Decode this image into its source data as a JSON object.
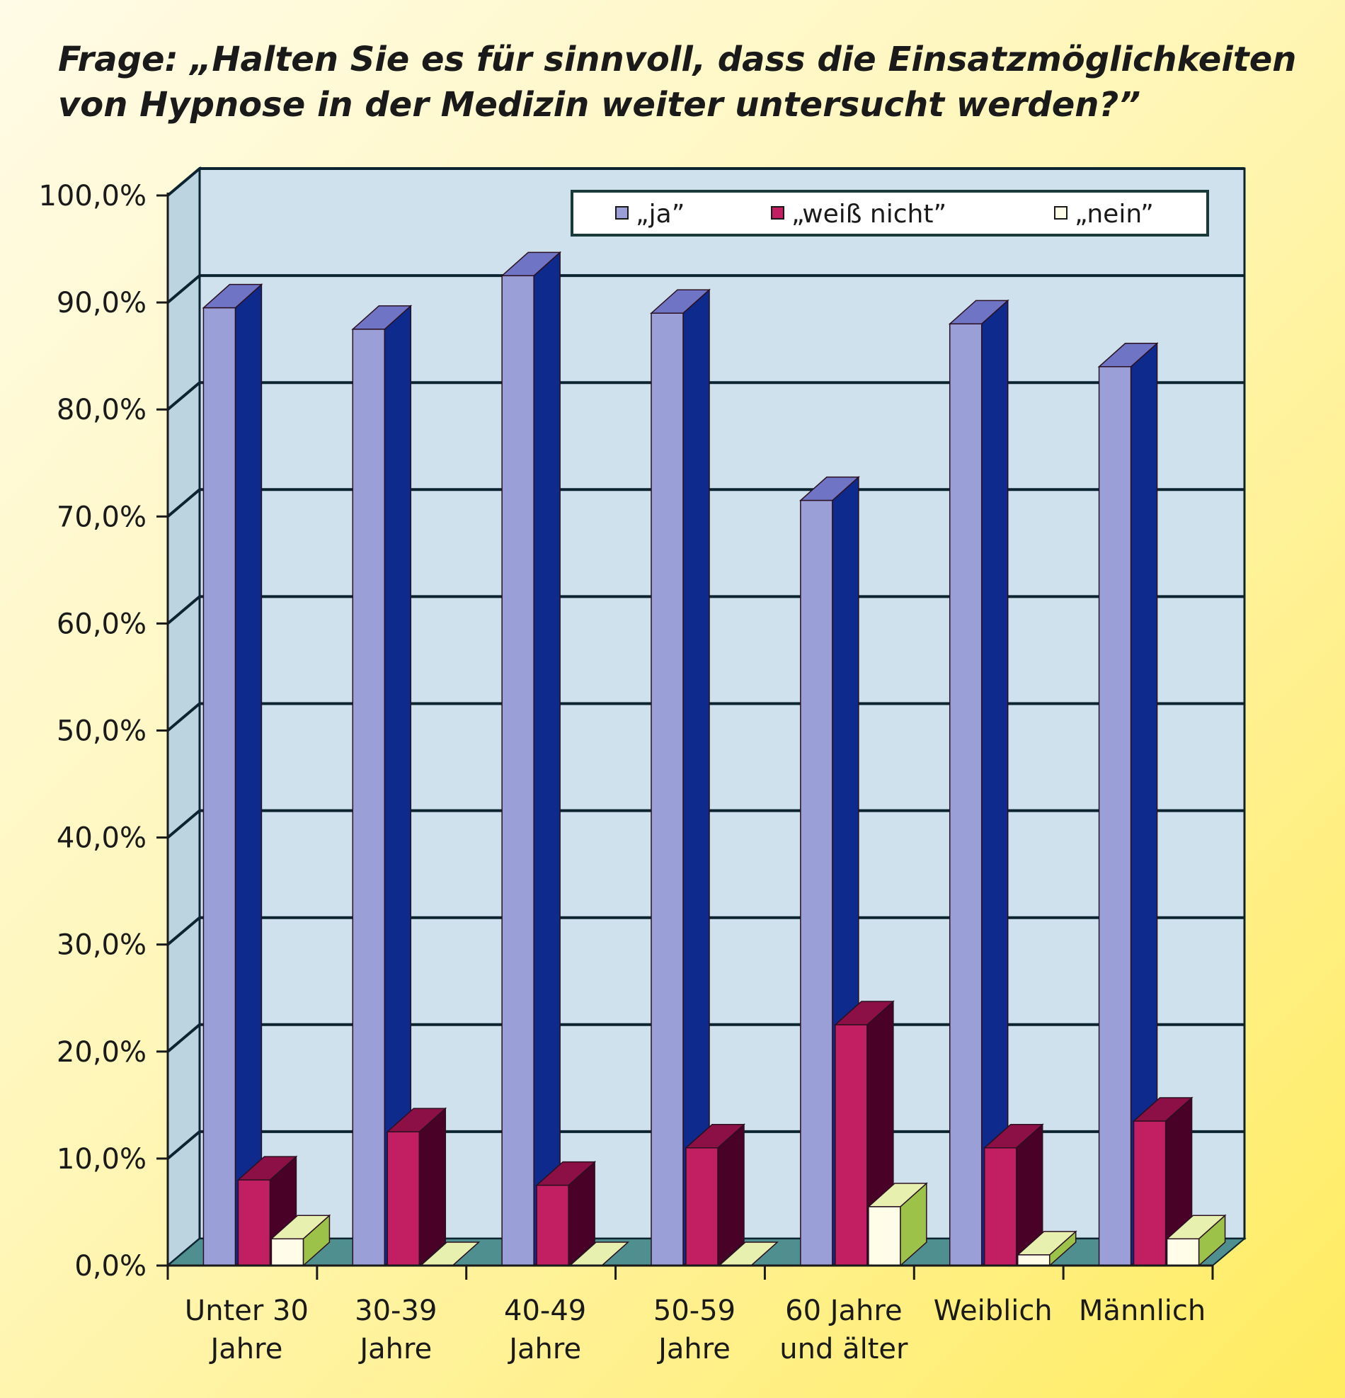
{
  "title_lines": [
    "Frage: „Halten Sie es für sinnvoll, dass die Einsatzmöglichkeiten",
    "von Hypnose in der Medizin weiter untersucht werden?”"
  ],
  "chart_data": {
    "type": "bar",
    "style": "3d-grouped",
    "categories": [
      [
        "Unter 30",
        "Jahre"
      ],
      [
        "30-39",
        "Jahre"
      ],
      [
        "40-49",
        "Jahre"
      ],
      [
        "50-59",
        "Jahre"
      ],
      [
        "60 Jahre",
        "und älter"
      ],
      [
        "Weiblich"
      ],
      [
        "Männlich"
      ]
    ],
    "series": [
      {
        "name": "„ja”",
        "values": [
          89.5,
          87.5,
          92.5,
          89.0,
          71.5,
          88.0,
          84.0
        ],
        "colors": {
          "front": "#9b9fd8",
          "side": "#0d2a8c",
          "top": "#6f74c4"
        }
      },
      {
        "name": "„weiß nicht”",
        "values": [
          8.0,
          12.5,
          7.5,
          11.0,
          22.5,
          11.0,
          13.5
        ],
        "colors": {
          "front": "#c21e62",
          "side": "#4a0128",
          "top": "#8c1046"
        }
      },
      {
        "name": "„nein”",
        "values": [
          2.5,
          0.0,
          0.0,
          0.0,
          5.5,
          1.0,
          2.5
        ],
        "colors": {
          "front": "#fffde8",
          "side": "#9cc24a",
          "top": "#e8f0b0"
        }
      }
    ],
    "yticks": [
      "0,0%",
      "10,0%",
      "20,0%",
      "30,0%",
      "40,0%",
      "50,0%",
      "60,0%",
      "70,0%",
      "80,0%",
      "90,0%",
      "100,0%"
    ],
    "ylim": [
      0,
      100
    ],
    "grid": true,
    "legend_position": "top-right",
    "colors": {
      "back_wall": "#cfe1ec",
      "floor": "#4f8f8f",
      "grid": "#0c2430"
    }
  }
}
